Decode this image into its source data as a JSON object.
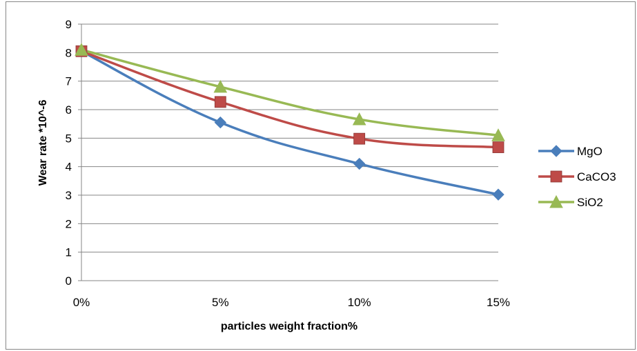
{
  "chart_data": {
    "type": "line",
    "categories": [
      "0%",
      "5%",
      "10%",
      "15%"
    ],
    "xlabel": "particles weight fraction%",
    "ylabel": "Wear rate *10^-6",
    "ylim": [
      0,
      9
    ],
    "yticks": [
      "0",
      "1",
      "2",
      "3",
      "4",
      "5",
      "6",
      "7",
      "8",
      "9"
    ],
    "grid": "horizontal",
    "legend_position": "right",
    "series": [
      {
        "name": "MgO",
        "values": [
          8.05,
          5.55,
          4.1,
          3.02
        ],
        "color": "#4a7ebb",
        "marker": "diamond"
      },
      {
        "name": "CaCO3",
        "values": [
          8.05,
          6.27,
          4.98,
          4.68
        ],
        "color": "#be4b48",
        "marker": "square"
      },
      {
        "name": "SiO2",
        "values": [
          8.1,
          6.8,
          5.66,
          5.1
        ],
        "color": "#98b954",
        "marker": "triangle"
      }
    ]
  }
}
